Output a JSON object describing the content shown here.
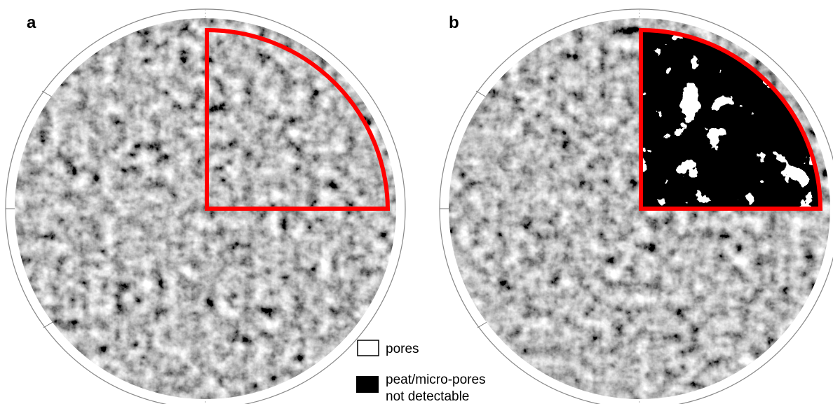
{
  "panels": [
    {
      "label": "a"
    },
    {
      "label": "b"
    }
  ],
  "legend": {
    "items": [
      {
        "lines": [
          "pores"
        ]
      },
      {
        "lines": [
          "peat/micro-pores",
          "not detectable"
        ]
      }
    ]
  }
}
